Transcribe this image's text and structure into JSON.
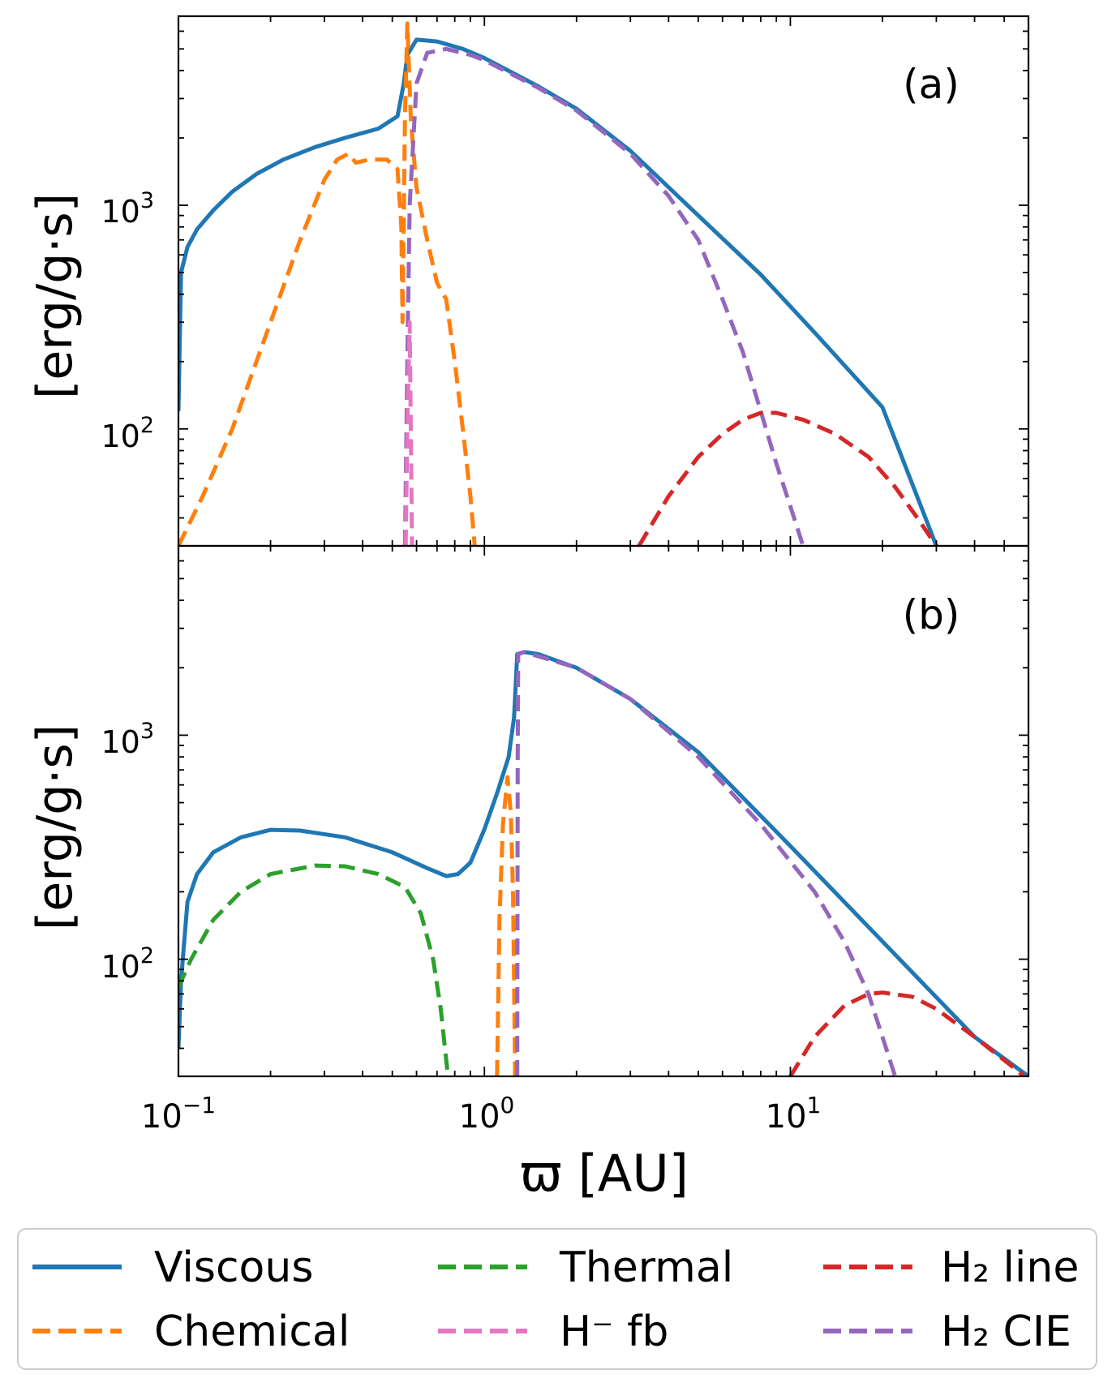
{
  "chart_data": [
    {
      "panel": "(a)",
      "type": "line",
      "xscale": "log",
      "yscale": "log",
      "xlim": [
        0.1,
        60
      ],
      "ylim": [
        30,
        7000
      ],
      "ylabel": "[erg/g·s]",
      "xlabel": "",
      "y_ticks": [
        {
          "value": 100,
          "base": "10",
          "exp": "2"
        },
        {
          "value": 1000,
          "base": "10",
          "exp": "3"
        }
      ],
      "series": [
        {
          "name": "Viscous",
          "style": "solid",
          "color": "#1f77b4",
          "points": [
            [
              0.1,
              120
            ],
            [
              0.102,
              500
            ],
            [
              0.107,
              650
            ],
            [
              0.115,
              780
            ],
            [
              0.13,
              950
            ],
            [
              0.15,
              1150
            ],
            [
              0.18,
              1380
            ],
            [
              0.22,
              1600
            ],
            [
              0.28,
              1820
            ],
            [
              0.35,
              2000
            ],
            [
              0.45,
              2200
            ],
            [
              0.52,
              2500
            ],
            [
              0.545,
              3500
            ],
            [
              0.56,
              4700
            ],
            [
              0.6,
              5500
            ],
            [
              0.7,
              5400
            ],
            [
              0.85,
              5000
            ],
            [
              1.0,
              4550
            ],
            [
              1.5,
              3400
            ],
            [
              2.0,
              2700
            ],
            [
              3.0,
              1750
            ],
            [
              5.0,
              900
            ],
            [
              8.0,
              490
            ],
            [
              12.0,
              270
            ],
            [
              20.0,
              125
            ],
            [
              30.0,
              30
            ]
          ]
        },
        {
          "name": "Chemical",
          "style": "dashed",
          "color": "#ff7f0e",
          "points": [
            [
              0.1,
              30
            ],
            [
              0.12,
              50
            ],
            [
              0.15,
              100
            ],
            [
              0.2,
              300
            ],
            [
              0.25,
              700
            ],
            [
              0.3,
              1300
            ],
            [
              0.33,
              1600
            ],
            [
              0.36,
              1700
            ],
            [
              0.38,
              1550
            ],
            [
              0.42,
              1600
            ],
            [
              0.48,
              1600
            ],
            [
              0.52,
              1450
            ],
            [
              0.535,
              800
            ],
            [
              0.54,
              300
            ],
            [
              0.55,
              2500
            ],
            [
              0.56,
              6500
            ],
            [
              0.575,
              2400
            ],
            [
              0.6,
              1200
            ],
            [
              0.65,
              700
            ],
            [
              0.7,
              450
            ],
            [
              0.75,
              380
            ],
            [
              0.8,
              200
            ],
            [
              0.85,
              100
            ],
            [
              0.9,
              50
            ],
            [
              0.93,
              30
            ]
          ]
        },
        {
          "name": "H2 CIE",
          "style": "dashed",
          "color": "#9467bd",
          "points": [
            [
              0.55,
              30
            ],
            [
              0.56,
              200
            ],
            [
              0.57,
              1000
            ],
            [
              0.6,
              3500
            ],
            [
              0.65,
              4800
            ],
            [
              0.75,
              5000
            ],
            [
              0.9,
              4700
            ],
            [
              1.0,
              4450
            ],
            [
              1.5,
              3350
            ],
            [
              2.0,
              2650
            ],
            [
              3.0,
              1700
            ],
            [
              4.0,
              1100
            ],
            [
              5.0,
              700
            ],
            [
              6.0,
              380
            ],
            [
              7.0,
              220
            ],
            [
              8.0,
              120
            ],
            [
              9.0,
              70
            ],
            [
              10.0,
              45
            ],
            [
              11.0,
              30
            ]
          ]
        },
        {
          "name": "H- fb",
          "style": "dashed",
          "color": "#e377c2",
          "points": [
            [
              0.553,
              30
            ],
            [
              0.56,
              100
            ],
            [
              0.57,
              300
            ],
            [
              0.58,
              30
            ]
          ]
        },
        {
          "name": "H2 line",
          "style": "dashed",
          "color": "#d62728",
          "points": [
            [
              3.2,
              30
            ],
            [
              4.0,
              50
            ],
            [
              5.0,
              75
            ],
            [
              6.0,
              95
            ],
            [
              7.0,
              110
            ],
            [
              8.0,
              118
            ],
            [
              9.0,
              118
            ],
            [
              11.0,
              110
            ],
            [
              14.0,
              95
            ],
            [
              18.0,
              75
            ],
            [
              22.0,
              55
            ],
            [
              26.0,
              40
            ],
            [
              30.0,
              30
            ]
          ]
        }
      ]
    },
    {
      "panel": "(b)",
      "type": "line",
      "xscale": "log",
      "yscale": "log",
      "xlim": [
        0.1,
        60
      ],
      "ylim": [
        30,
        7000
      ],
      "ylabel": "[erg/g·s]",
      "xlabel": "ϖ [AU]",
      "y_ticks": [
        {
          "value": 100,
          "base": "10",
          "exp": "2"
        },
        {
          "value": 1000,
          "base": "10",
          "exp": "3"
        }
      ],
      "x_ticks": [
        {
          "value": 0.1,
          "base": "10",
          "exp": "−1"
        },
        {
          "value": 1,
          "base": "10",
          "exp": "0"
        },
        {
          "value": 10,
          "base": "10",
          "exp": "1"
        }
      ],
      "series": [
        {
          "name": "Viscous",
          "style": "solid",
          "color": "#1f77b4",
          "points": [
            [
              0.1,
              40
            ],
            [
              0.102,
              80
            ],
            [
              0.107,
              180
            ],
            [
              0.115,
              240
            ],
            [
              0.13,
              300
            ],
            [
              0.16,
              350
            ],
            [
              0.2,
              378
            ],
            [
              0.25,
              375
            ],
            [
              0.35,
              350
            ],
            [
              0.5,
              300
            ],
            [
              0.65,
              255
            ],
            [
              0.75,
              235
            ],
            [
              0.82,
              240
            ],
            [
              0.9,
              270
            ],
            [
              1.0,
              380
            ],
            [
              1.1,
              550
            ],
            [
              1.2,
              800
            ],
            [
              1.25,
              1200
            ],
            [
              1.28,
              2300
            ],
            [
              1.35,
              2350
            ],
            [
              1.5,
              2300
            ],
            [
              2.0,
              2000
            ],
            [
              3.0,
              1450
            ],
            [
              5.0,
              840
            ],
            [
              10.0,
              320
            ],
            [
              20.0,
              120
            ],
            [
              40.0,
              45
            ],
            [
              60.0,
              30
            ]
          ]
        },
        {
          "name": "Thermal",
          "style": "dashed",
          "color": "#2ca02c",
          "points": [
            [
              0.1,
              75
            ],
            [
              0.11,
              100
            ],
            [
              0.13,
              150
            ],
            [
              0.16,
              200
            ],
            [
              0.2,
              240
            ],
            [
              0.28,
              262
            ],
            [
              0.35,
              260
            ],
            [
              0.45,
              240
            ],
            [
              0.55,
              210
            ],
            [
              0.62,
              160
            ],
            [
              0.68,
              100
            ],
            [
              0.72,
              60
            ],
            [
              0.76,
              30
            ]
          ]
        },
        {
          "name": "Chemical",
          "style": "dashed",
          "color": "#ff7f0e",
          "points": [
            [
              1.1,
              30
            ],
            [
              1.12,
              150
            ],
            [
              1.15,
              400
            ],
            [
              1.19,
              650
            ],
            [
              1.22,
              450
            ],
            [
              1.24,
              200
            ],
            [
              1.26,
              30
            ]
          ]
        },
        {
          "name": "H2 CIE",
          "style": "dashed",
          "color": "#9467bd",
          "points": [
            [
              1.28,
              30
            ],
            [
              1.285,
              800
            ],
            [
              1.29,
              2300
            ],
            [
              1.35,
              2350
            ],
            [
              2.0,
              2000
            ],
            [
              3.0,
              1450
            ],
            [
              5.0,
              800
            ],
            [
              8.0,
              400
            ],
            [
              12.0,
              200
            ],
            [
              15.0,
              120
            ],
            [
              18.0,
              70
            ],
            [
              20.0,
              45
            ],
            [
              22.0,
              30
            ]
          ]
        },
        {
          "name": "H2 line",
          "style": "dashed",
          "color": "#d62728",
          "points": [
            [
              10.0,
              30
            ],
            [
              12.0,
              45
            ],
            [
              15.0,
              62
            ],
            [
              18.0,
              70
            ],
            [
              20.0,
              71
            ],
            [
              25.0,
              68
            ],
            [
              30.0,
              60
            ],
            [
              40.0,
              45
            ],
            [
              55.0,
              32
            ],
            [
              58.0,
              30
            ]
          ]
        }
      ]
    }
  ],
  "legend": {
    "entries": [
      {
        "label": "Viscous",
        "style": "solid",
        "color": "#1f77b4"
      },
      {
        "label": "Thermal",
        "style": "dashed",
        "color": "#2ca02c"
      },
      {
        "label": "H₂ line",
        "style": "dashed",
        "color": "#d62728"
      },
      {
        "label": "Chemical",
        "style": "dashed",
        "color": "#ff7f0e"
      },
      {
        "label": "H⁻ fb",
        "style": "dashed",
        "color": "#e377c2"
      },
      {
        "label": "H₂ CIE",
        "style": "dashed",
        "color": "#9467bd"
      }
    ]
  }
}
